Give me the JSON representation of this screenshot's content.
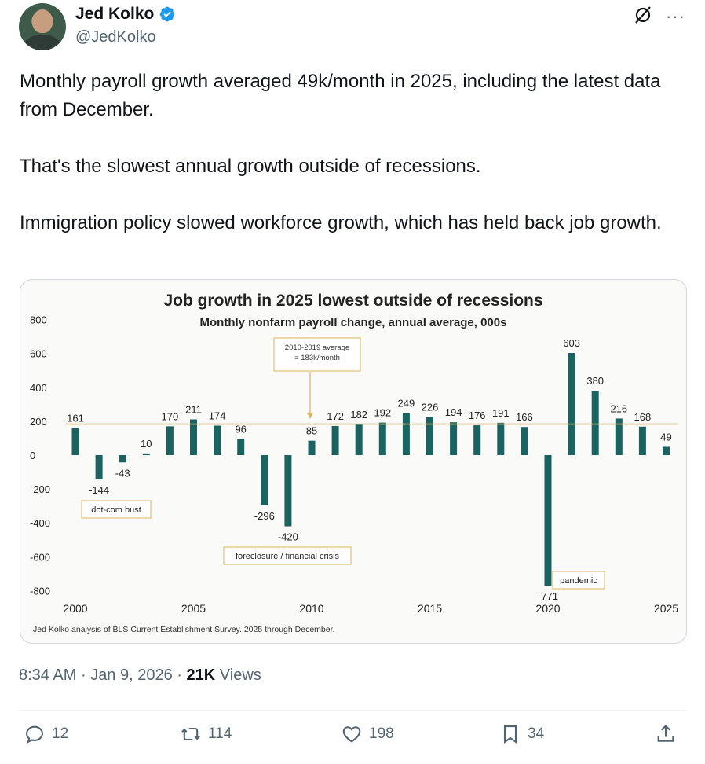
{
  "author": {
    "name": "Jed Kolko",
    "handle": "@JedKolko"
  },
  "tweet": {
    "paragraphs": [
      "Monthly payroll growth averaged 49k/month in 2025, including the latest data from December.",
      "That's the slowest annual growth outside of recessions.",
      "Immigration policy slowed workforce growth, which has held back job growth."
    ]
  },
  "chart_data": {
    "type": "bar",
    "title": "Job growth in 2025 lowest outside of recessions",
    "subtitle": "Monthly nonfarm payroll change, annual average, 000s",
    "categories": [
      "2000",
      "2001",
      "2002",
      "2003",
      "2004",
      "2005",
      "2006",
      "2007",
      "2008",
      "2009",
      "2010",
      "2011",
      "2012",
      "2013",
      "2014",
      "2015",
      "2016",
      "2017",
      "2018",
      "2019",
      "2020",
      "2021",
      "2022",
      "2023",
      "2024",
      "2025"
    ],
    "values": [
      161,
      -144,
      -43,
      10,
      170,
      211,
      174,
      96,
      -296,
      -420,
      85,
      172,
      182,
      192,
      249,
      226,
      194,
      176,
      191,
      166,
      -771,
      603,
      380,
      216,
      168,
      49
    ],
    "x_tick_labels": [
      "2000",
      "2005",
      "2010",
      "2015",
      "2020",
      "2025"
    ],
    "y_tick_labels": [
      "800",
      "600",
      "400",
      "200",
      "0",
      "-200",
      "-400",
      "-600",
      "-800"
    ],
    "ylim": [
      -800,
      800
    ],
    "reference_line": {
      "value": 183,
      "label_lines": [
        "2010-2019 average",
        "= 183k/month"
      ]
    },
    "annotations": [
      {
        "text": "dot-com bust",
        "year": "2001"
      },
      {
        "text": "foreclosure / financial crisis",
        "year": "2009"
      },
      {
        "text": "pandemic",
        "year": "2020"
      }
    ],
    "source": "Jed Kolko analysis of BLS Current Establishment Survey. 2025 through December.",
    "colors": {
      "bar": "#1a6360",
      "reference_line": "#d9b45a",
      "annotation_border": "#d9b45a"
    }
  },
  "meta": {
    "time": "8:34 AM",
    "separator": "·",
    "date": "Jan 9, 2026",
    "views_count": "21K",
    "views_label": "Views"
  },
  "actions": {
    "replies": "12",
    "reposts": "114",
    "likes": "198",
    "bookmarks": "34"
  },
  "colors": {
    "verified": "#1d9bf0",
    "secondary_text": "#536471"
  }
}
